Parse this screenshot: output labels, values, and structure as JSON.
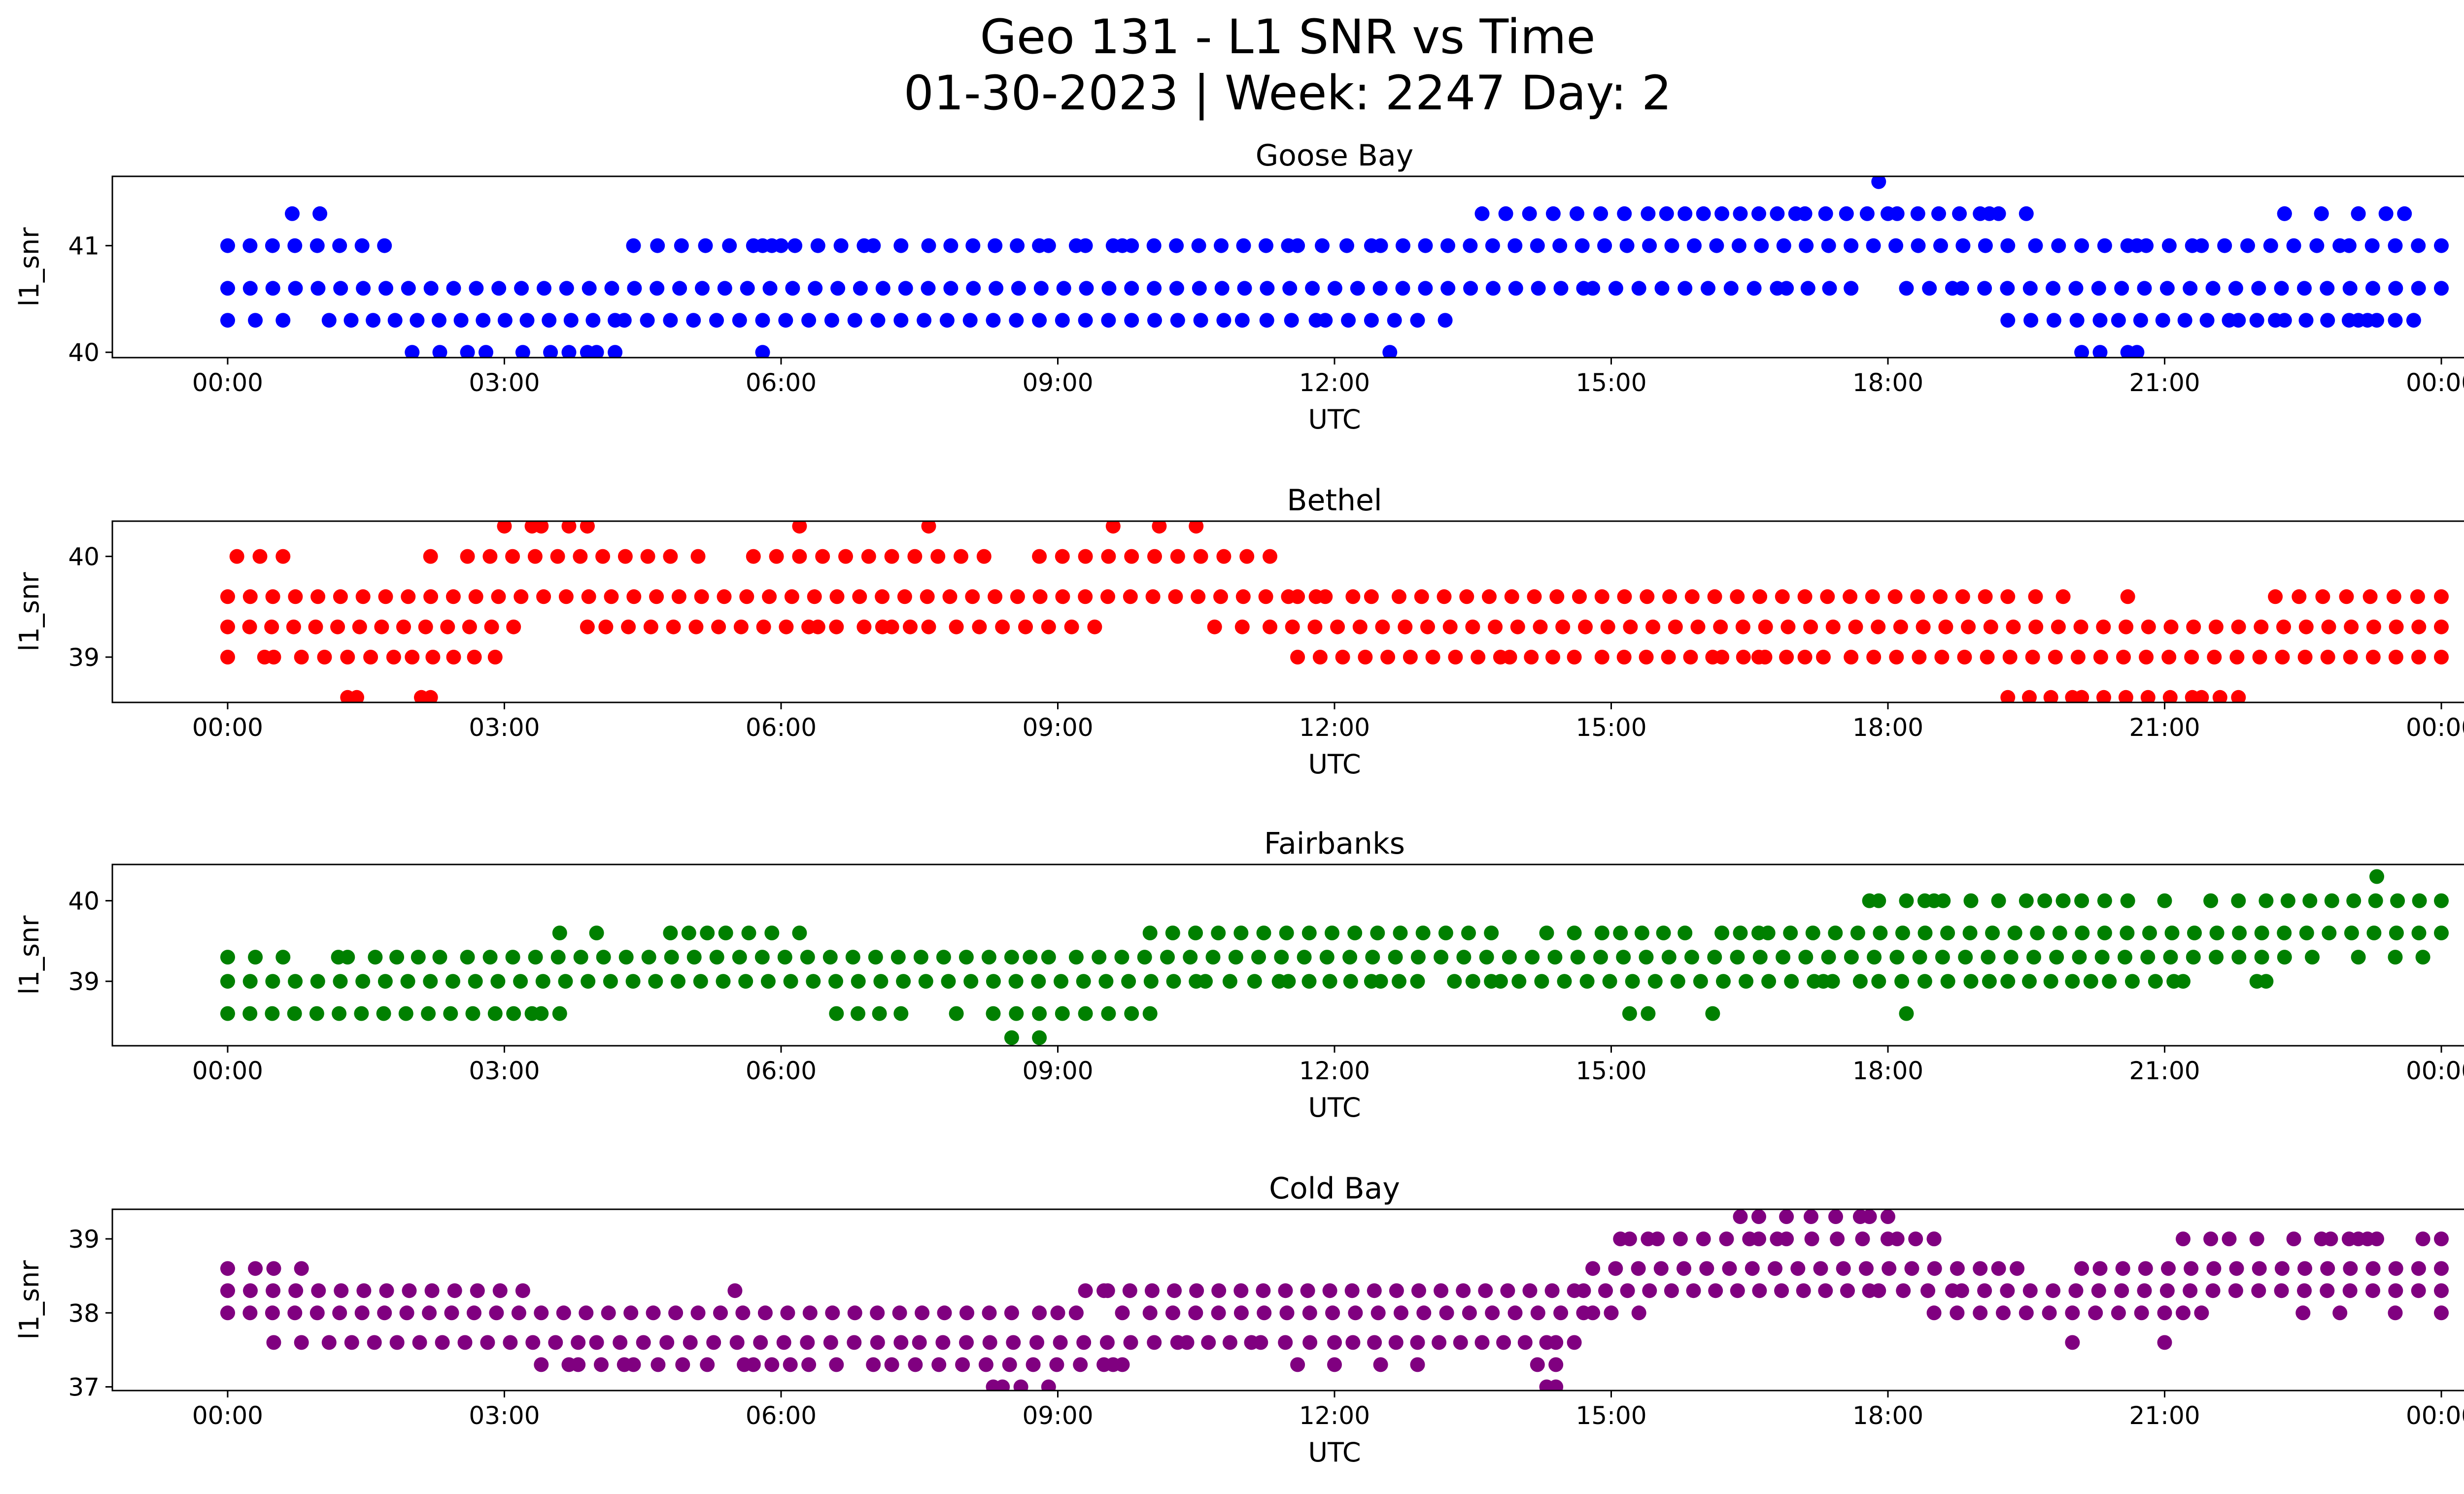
{
  "title_line1": "Geo 131 - L1 SNR vs Time",
  "title_line2": "01-30-2023 | Week: 2247 Day: 2",
  "chart_data": [
    {
      "type": "scatter",
      "title": "Goose Bay",
      "xlabel": "UTC",
      "ylabel": "l1_snr",
      "color": "#0000ff",
      "x_ticks": [
        "00:00",
        "03:00",
        "06:00",
        "09:00",
        "12:00",
        "15:00",
        "18:00",
        "21:00",
        "00:00"
      ],
      "xlim_hours": [
        -1.25,
        25.25
      ],
      "ylim": [
        39.95,
        41.65
      ],
      "y_ticks": [
        40,
        41
      ],
      "series": [
        {
          "y": 41.6,
          "points": [
            17.9
          ]
        },
        {
          "y": 41.3,
          "segments": [
            [
              0.7,
              1.0
            ],
            [
              13.6,
              15.4
            ],
            [
              15.6,
              15.8
            ],
            [
              16.0,
              16.4
            ],
            [
              16.6,
              17.0
            ],
            [
              17.1,
              18.0
            ],
            [
              18.1,
              19.0
            ],
            [
              19.1,
              19.2
            ],
            [
              22.3,
              22.3
            ],
            [
              22.7,
              22.7
            ],
            [
              23.1,
              23.1
            ],
            [
              23.4,
              23.6
            ]
          ],
          "points": [
            19.5
          ]
        },
        {
          "y": 41.0,
          "segments": [
            [
              0.0,
              1.7
            ],
            [
              4.4,
              5.7
            ],
            [
              5.9,
              6.9
            ],
            [
              7.0,
              7.3
            ],
            [
              7.6,
              8.8
            ],
            [
              8.9,
              9.2
            ],
            [
              9.3,
              9.6
            ],
            [
              9.8,
              11.5
            ],
            [
              11.6,
              12.4
            ],
            [
              12.5,
              19.3
            ],
            [
              19.6,
              20.6
            ],
            [
              20.8,
              21.3
            ],
            [
              21.4,
              22.9
            ],
            [
              23.0,
              24.0
            ]
          ],
          "points": [
            5.8,
            6.0,
            7.0,
            9.7,
            20.7
          ]
        },
        {
          "y": 40.6,
          "segments": [
            [
              0.0,
              14.7
            ],
            [
              14.8,
              16.8
            ],
            [
              16.9,
              17.6
            ],
            [
              18.2,
              18.7
            ],
            [
              18.8,
              24.0
            ]
          ]
        },
        {
          "y": 40.3,
          "segments": [
            [
              0.3,
              0.6
            ],
            [
              1.1,
              4.2
            ],
            [
              4.3,
              10.8
            ],
            [
              11.0,
              11.8
            ],
            [
              11.9,
              12.9
            ],
            [
              19.3,
              20.3
            ],
            [
              20.5,
              21.7
            ],
            [
              21.8,
              22.2
            ],
            [
              22.3,
              23.0
            ],
            [
              23.1,
              23.2
            ],
            [
              23.3,
              23.5
            ]
          ],
          "points": [
            0.0,
            13.2,
            23.7
          ]
        },
        {
          "y": 40.0,
          "segments": [
            [
              2.0,
              2.6
            ],
            [
              3.2,
              3.5
            ],
            [
              3.7,
              4.0
            ],
            [
              20.3,
              20.6
            ]
          ],
          "points": [
            2.8,
            3.9,
            4.2,
            5.8,
            12.6,
            20.1,
            20.7
          ]
        }
      ]
    },
    {
      "type": "scatter",
      "title": "Bethel",
      "xlabel": "UTC",
      "ylabel": "l1_snr",
      "color": "#ff0000",
      "x_ticks": [
        "00:00",
        "03:00",
        "06:00",
        "09:00",
        "12:00",
        "15:00",
        "18:00",
        "21:00",
        "00:00"
      ],
      "xlim_hours": [
        -1.25,
        25.25
      ],
      "ylim": [
        38.55,
        40.35
      ],
      "y_ticks": [
        39,
        40
      ],
      "series": [
        {
          "y": 40.3,
          "segments": [
            [
              3.0,
              3.3
            ],
            [
              3.4,
              3.7
            ],
            [
              3.9,
              3.9
            ]
          ],
          "points": [
            6.2,
            7.6,
            9.6,
            10.1,
            10.5
          ]
        },
        {
          "y": 40.0,
          "segments": [
            [
              0.1,
              0.6
            ],
            [
              2.6,
              4.8
            ],
            [
              5.7,
              8.2
            ],
            [
              8.8,
              11.3
            ]
          ],
          "points": [
            2.2,
            5.1
          ]
        },
        {
          "y": 39.6,
          "segments": [
            [
              0.0,
              11.5
            ],
            [
              11.6,
              11.8
            ],
            [
              12.2,
              12.4
            ],
            [
              12.7,
              19.3
            ],
            [
              19.6,
              19.9
            ],
            [
              22.2,
              24.0
            ]
          ],
          "points": [
            11.9,
            20.6
          ]
        },
        {
          "y": 39.3,
          "segments": [
            [
              0.0,
              3.1
            ],
            [
              4.1,
              6.3
            ],
            [
              6.6,
              6.9
            ],
            [
              7.2,
              7.6
            ],
            [
              7.9,
              9.4
            ],
            [
              11.3,
              24.0
            ]
          ],
          "points": [
            3.9,
            6.4,
            7.1,
            10.7,
            11.0
          ]
        },
        {
          "y": 39.0,
          "segments": [
            [
              0.4,
              0.5
            ],
            [
              0.8,
              1.8
            ],
            [
              2.0,
              2.9
            ],
            [
              11.6,
              13.8
            ],
            [
              13.9,
              14.6
            ],
            [
              14.9,
              16.1
            ],
            [
              16.2,
              16.9
            ],
            [
              17.1,
              17.3
            ],
            [
              17.6,
              24.0
            ]
          ],
          "points": [
            0.0,
            16.6
          ]
        },
        {
          "y": 38.6,
          "segments": [
            [
              1.3,
              1.4
            ],
            [
              2.1,
              2.2
            ],
            [
              19.3,
              20.0
            ],
            [
              20.1,
              21.3
            ],
            [
              21.4,
              21.8
            ]
          ],
          "points": [
            20.1
          ]
        }
      ]
    },
    {
      "type": "scatter",
      "title": "Fairbanks",
      "xlabel": "UTC",
      "ylabel": "l1_snr",
      "color": "#008000",
      "x_ticks": [
        "00:00",
        "03:00",
        "06:00",
        "09:00",
        "12:00",
        "15:00",
        "18:00",
        "21:00",
        "00:00"
      ],
      "xlim_hours": [
        -1.25,
        25.25
      ],
      "ylim": [
        38.2,
        40.45
      ],
      "y_ticks": [
        39,
        40
      ],
      "series": [
        {
          "y": 40.3,
          "points": [
            23.3
          ]
        },
        {
          "y": 40.0,
          "segments": [
            [
              17.8,
              17.9
            ],
            [
              18.2,
              18.4
            ],
            [
              18.6,
              19.2
            ],
            [
              19.5,
              19.9
            ],
            [
              20.1,
              20.6
            ],
            [
              22.1,
              24.0
            ]
          ],
          "points": [
            18.5,
            19.9,
            21.0,
            21.5,
            21.8
          ]
        },
        {
          "y": 39.6,
          "segments": [
            [
              4.8,
              5.2
            ],
            [
              5.4,
              5.9
            ],
            [
              10.0,
              13.7
            ],
            [
              14.3,
              14.9
            ],
            [
              15.1,
              15.8
            ],
            [
              16.2,
              16.6
            ],
            [
              16.7,
              24.0
            ]
          ],
          "points": [
            3.6,
            4.0,
            6.2
          ]
        },
        {
          "y": 39.3,
          "segments": [
            [
              0.0,
              0.6
            ],
            [
              1.2,
              1.3
            ],
            [
              1.6,
              2.3
            ],
            [
              2.6,
              8.5
            ],
            [
              8.7,
              8.9
            ],
            [
              9.2,
              22.3
            ]
          ],
          "points": [
            22.6,
            23.1,
            23.5,
            23.8
          ]
        },
        {
          "y": 39.0,
          "segments": [
            [
              0.0,
              10.5
            ],
            [
              10.6,
              11.4
            ],
            [
              11.5,
              12.4
            ],
            [
              12.5,
              12.7
            ],
            [
              13.3,
              13.7
            ],
            [
              14.0,
              17.2
            ],
            [
              17.4,
              17.7
            ],
            [
              17.9,
              18.9
            ],
            [
              19.3,
              20.0
            ],
            [
              20.4,
              20.9
            ],
            [
              21.1,
              21.2
            ],
            [
              22.0,
              22.1
            ]
          ],
          "points": [
            12.9,
            13.8,
            17.3,
            19.1,
            20.2
          ]
        },
        {
          "y": 38.6,
          "segments": [
            [
              0.0,
              2.9
            ],
            [
              3.1,
              3.3
            ],
            [
              3.4,
              3.6
            ],
            [
              6.6,
              7.3
            ],
            [
              8.3,
              9.8
            ]
          ],
          "points": [
            7.9,
            10.0,
            15.2,
            15.4,
            16.1,
            18.2
          ]
        },
        {
          "y": 38.3,
          "points": [
            8.5,
            8.8
          ]
        }
      ]
    },
    {
      "type": "scatter",
      "title": "Cold Bay",
      "xlabel": "UTC",
      "ylabel": "l1_snr",
      "color": "#800080",
      "x_ticks": [
        "00:00",
        "03:00",
        "06:00",
        "09:00",
        "12:00",
        "15:00",
        "18:00",
        "21:00",
        "00:00"
      ],
      "xlim_hours": [
        -1.25,
        25.25
      ],
      "ylim": [
        36.95,
        39.4
      ],
      "y_ticks": [
        37,
        38,
        39
      ],
      "series": [
        {
          "y": 39.3,
          "segments": [
            [
              16.4,
              16.6
            ],
            [
              16.9,
              17.7
            ],
            [
              17.8,
              18.0
            ]
          ]
        },
        {
          "y": 39.0,
          "segments": [
            [
              15.2,
              15.4
            ],
            [
              15.5,
              16.5
            ],
            [
              16.6,
              16.8
            ],
            [
              16.9,
              18.0
            ],
            [
              18.1,
              18.5
            ],
            [
              21.2,
              21.5
            ],
            [
              21.7,
              22.0
            ],
            [
              22.4,
              22.7
            ],
            [
              22.8,
              23.1
            ],
            [
              23.2,
              23.3
            ]
          ],
          "points": [
            15.1,
            18.5,
            23.0,
            23.8,
            24.0
          ]
        },
        {
          "y": 38.6,
          "segments": [
            [
              0.0,
              0.3
            ],
            [
              14.8,
              19.0
            ],
            [
              20.3,
              24.0
            ]
          ],
          "points": [
            0.5,
            0.8,
            19.2,
            19.4,
            20.1
          ]
        },
        {
          "y": 38.3,
          "segments": [
            [
              0.0,
              3.2
            ],
            [
              9.3,
              14.6
            ],
            [
              14.7,
              17.8
            ],
            [
              17.9,
              18.7
            ],
            [
              18.8,
              24.0
            ]
          ],
          "points": [
            5.5,
            9.5
          ]
        },
        {
          "y": 38.0,
          "segments": [
            [
              0.0,
              8.5
            ],
            [
              8.8,
              9.2
            ],
            [
              10.0,
              14.7
            ],
            [
              14.8,
              15.0
            ],
            [
              18.5,
              21.0
            ],
            [
              21.2,
              21.4
            ]
          ],
          "points": [
            9.7,
            15.3,
            22.5,
            22.9,
            23.5,
            24.0
          ]
        },
        {
          "y": 37.6,
          "segments": [
            [
              1.1,
              3.8
            ],
            [
              4.0,
              7.3
            ],
            [
              7.5,
              10.3
            ],
            [
              10.4,
              11.1
            ],
            [
              11.2,
              12.0
            ],
            [
              12.2,
              14.3
            ],
            [
              14.4,
              14.6
            ]
          ],
          "points": [
            0.5,
            0.8,
            20.0,
            21.0
          ]
        },
        {
          "y": 37.3,
          "segments": [
            [
              3.4,
              3.7
            ],
            [
              3.8,
              4.3
            ],
            [
              4.4,
              5.2
            ],
            [
              5.7,
              5.9
            ],
            [
              6.1,
              6.3
            ],
            [
              7.2,
              9.5
            ],
            [
              9.6,
              9.7
            ],
            [
              14.2,
              14.4
            ]
          ],
          "points": [
            5.6,
            6.6,
            7.0,
            11.6,
            12.0,
            12.5,
            12.9
          ]
        },
        {
          "y": 37.0,
          "segments": [
            [
              8.3,
              8.4
            ],
            [
              8.6,
              8.9
            ],
            [
              14.3,
              14.4
            ]
          ]
        }
      ]
    }
  ]
}
